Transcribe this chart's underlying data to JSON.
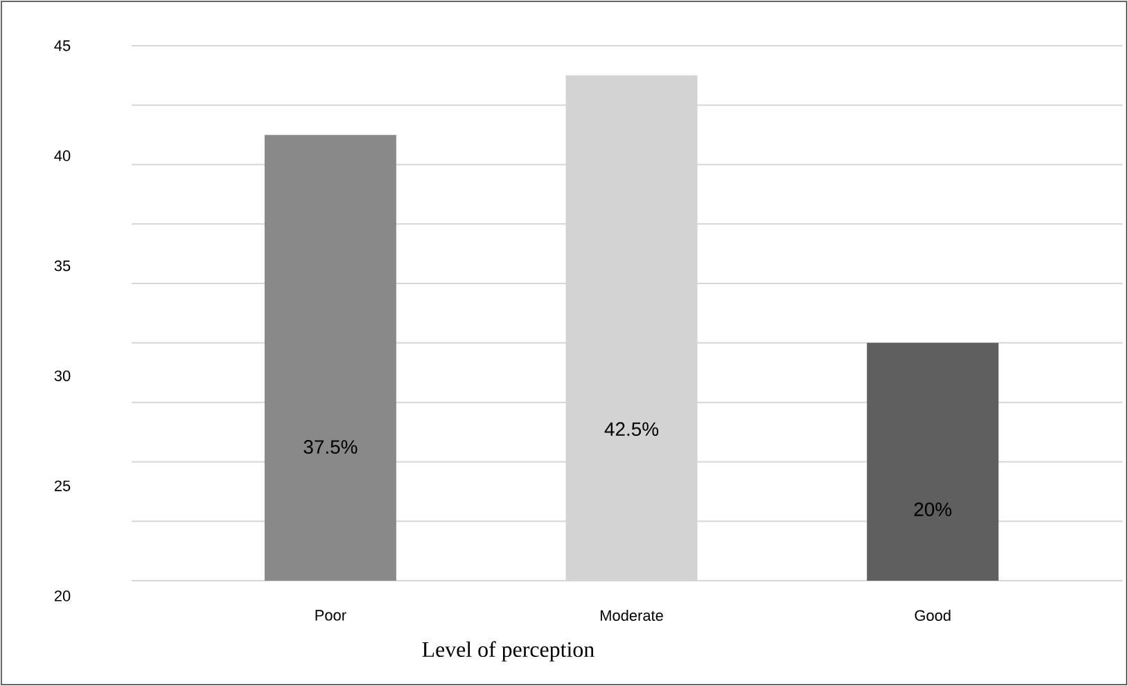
{
  "chart_data": {
    "type": "bar",
    "xlabel": "Level of perception",
    "categories": [
      "Poor",
      "Moderate",
      "Good"
    ],
    "values": [
      37.5,
      42.5,
      20
    ],
    "value_labels": [
      "37.5%",
      "42.5%",
      "20%"
    ],
    "colors": [
      "#898989",
      "#d3d3d3",
      "#5f5f5f"
    ],
    "ylim": [
      0,
      45
    ],
    "yticks": [
      {
        "value": 0,
        "label": null
      },
      {
        "value": 5,
        "label": null
      },
      {
        "value": 10,
        "label": null
      },
      {
        "value": 15,
        "label": null
      },
      {
        "value": 20,
        "label": null
      },
      {
        "value": 25,
        "label": null
      },
      {
        "value": 30,
        "label": null
      },
      {
        "value": 35,
        "label": null
      },
      {
        "value": 40,
        "label": null
      },
      {
        "value": 45,
        "label": null
      }
    ],
    "tick_labels": "x",
    "annotations": [
      "45",
      "40",
      "35",
      "30",
      "25",
      "20"
    ],
    "grid": "y"
  }
}
